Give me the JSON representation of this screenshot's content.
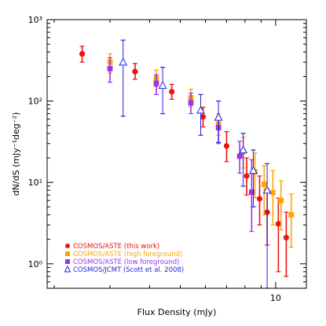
{
  "chart_data": {
    "type": "scatter",
    "title": "",
    "xlabel": "Flux Density (mJy)",
    "ylabel": "dN/dS (mJy⁻¹deg⁻²)",
    "x_scale": "log",
    "y_scale": "log",
    "xlim": [
      1.9,
      12.5
    ],
    "ylim": [
      0.5,
      1000
    ],
    "x_tick_labels": [
      "10"
    ],
    "y_tick_labels": [
      "10⁰",
      "10¹",
      "10²",
      "10³"
    ],
    "grid": false,
    "legend_position": "bottom-left",
    "legend": [
      {
        "label": "COSMOS/ASTE (this work)",
        "marker": "circle",
        "color": "#ee1111"
      },
      {
        "label": "COSMOS/ASTE (high foreground)",
        "marker": "square",
        "color": "#ffa500"
      },
      {
        "label": "COSMOS/ASTE (low foreground)",
        "marker": "square",
        "color": "#9933ee"
      },
      {
        "label": "COSMOS/JCMT (Scott et al. 2008)",
        "marker": "triangle",
        "color": "#2222dd"
      }
    ],
    "series": [
      {
        "name": "COSMOS/ASTE (this work)",
        "marker": "circle",
        "color": "#ee1111",
        "points": [
          {
            "x": 2.45,
            "y": 380,
            "ylo": 300,
            "yhi": 470
          },
          {
            "x": 3.6,
            "y": 230,
            "ylo": 185,
            "yhi": 290
          },
          {
            "x": 4.7,
            "y": 130,
            "ylo": 105,
            "yhi": 160
          },
          {
            "x": 5.9,
            "y": 64,
            "ylo": 48,
            "yhi": 84
          },
          {
            "x": 7.0,
            "y": 28,
            "ylo": 18,
            "yhi": 42
          },
          {
            "x": 8.1,
            "y": 12,
            "ylo": 7,
            "yhi": 20
          },
          {
            "x": 8.9,
            "y": 6.3,
            "ylo": 3,
            "yhi": 12
          },
          {
            "x": 9.4,
            "y": 4.3,
            "ylo": 1.7,
            "yhi": 8.3
          },
          {
            "x": 10.2,
            "y": 3.1,
            "ylo": 0.8,
            "yhi": 6.4
          },
          {
            "x": 10.8,
            "y": 2.1,
            "ylo": 0.7,
            "yhi": 4.3
          }
        ]
      },
      {
        "name": "COSMOS/ASTE (high foreground)",
        "marker": "square",
        "color": "#ffa500",
        "points": [
          {
            "x": 3.0,
            "y": 300,
            "ylo": 220,
            "yhi": 380
          },
          {
            "x": 4.2,
            "y": 190,
            "ylo": 150,
            "yhi": 240
          },
          {
            "x": 5.4,
            "y": 110,
            "ylo": 85,
            "yhi": 140
          },
          {
            "x": 6.6,
            "y": 52,
            "ylo": 38,
            "yhi": 70
          },
          {
            "x": 7.9,
            "y": 24,
            "ylo": 15,
            "yhi": 36
          },
          {
            "x": 8.6,
            "y": 13.5,
            "ylo": 6.5,
            "yhi": 23
          },
          {
            "x": 9.2,
            "y": 9.5,
            "ylo": 4,
            "yhi": 16
          },
          {
            "x": 9.8,
            "y": 7.5,
            "ylo": 3,
            "yhi": 14
          },
          {
            "x": 10.4,
            "y": 6,
            "ylo": 2.6,
            "yhi": 10.5
          },
          {
            "x": 11.2,
            "y": 4.0,
            "ylo": 1.6,
            "yhi": 7.2
          }
        ]
      },
      {
        "name": "COSMOS/ASTE (low foreground)",
        "marker": "square",
        "color": "#9933ee",
        "points": [
          {
            "x": 3.0,
            "y": 250,
            "ylo": 170,
            "yhi": 340
          },
          {
            "x": 4.2,
            "y": 165,
            "ylo": 120,
            "yhi": 210
          },
          {
            "x": 5.4,
            "y": 95,
            "ylo": 70,
            "yhi": 125
          },
          {
            "x": 6.6,
            "y": 47,
            "ylo": 30,
            "yhi": 65
          },
          {
            "x": 7.7,
            "y": 21,
            "ylo": 13,
            "yhi": 32
          },
          {
            "x": 8.4,
            "y": 7.6,
            "ylo": 2.5,
            "yhi": 19
          }
        ]
      },
      {
        "name": "COSMOS/JCMT (Scott et al. 2008)",
        "marker": "triangle",
        "color": "#2222dd",
        "points": [
          {
            "x": 3.3,
            "y": 300,
            "ylo": 65,
            "yhi": 560
          },
          {
            "x": 4.4,
            "y": 155,
            "ylo": 70,
            "yhi": 260
          },
          {
            "x": 5.8,
            "y": 77,
            "ylo": 38,
            "yhi": 120
          },
          {
            "x": 6.6,
            "y": 63,
            "ylo": 31,
            "yhi": 100
          },
          {
            "x": 7.9,
            "y": 25,
            "ylo": 9,
            "yhi": 40
          },
          {
            "x": 8.5,
            "y": 14,
            "ylo": 5,
            "yhi": 25
          },
          {
            "x": 9.4,
            "y": 8,
            "ylo": 0.5,
            "yhi": 17
          }
        ]
      }
    ]
  }
}
